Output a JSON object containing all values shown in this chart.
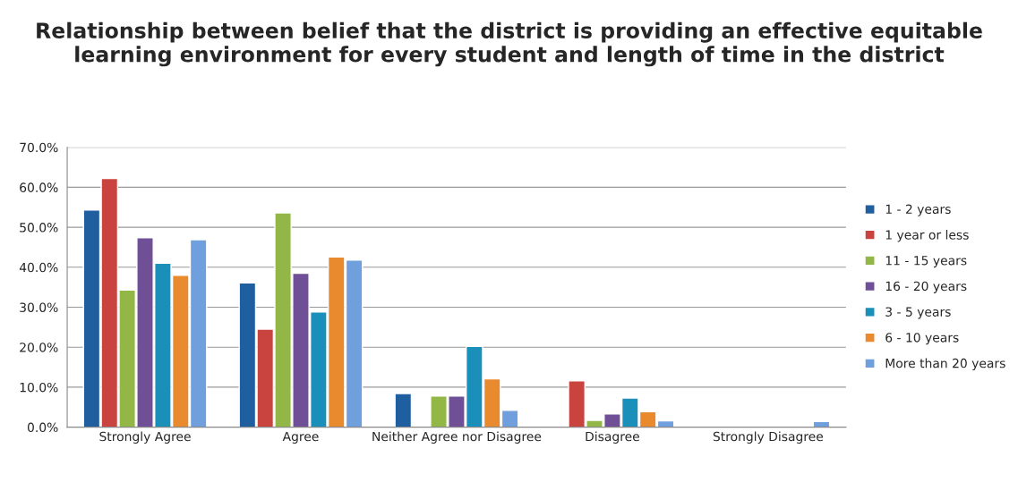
{
  "chart_data": {
    "type": "bar",
    "title": "Relationship between belief that the district is providing an effective equitable learning environment for every student and length of time in the district",
    "categories": [
      "Strongly Agree",
      "Agree",
      "Neither Agree nor Disagree",
      "Disagree",
      "Strongly Disagree"
    ],
    "series": [
      {
        "name": "1 - 2 years",
        "color": "#1f5fa0",
        "values": [
          54.3,
          36.1,
          8.4,
          null,
          null
        ]
      },
      {
        "name": "1 year or less",
        "color": "#c9433f",
        "values": [
          62.2,
          24.5,
          null,
          11.6,
          null
        ]
      },
      {
        "name": "11 - 15 years",
        "color": "#93b747",
        "values": [
          34.3,
          53.6,
          7.8,
          1.7,
          null
        ]
      },
      {
        "name": "16 - 20 years",
        "color": "#6f4f96",
        "values": [
          47.4,
          38.5,
          7.8,
          3.3,
          null
        ]
      },
      {
        "name": "3 - 5 years",
        "color": "#1a8fba",
        "values": [
          41.0,
          28.8,
          20.2,
          7.3,
          null
        ]
      },
      {
        "name": "6 - 10 years",
        "color": "#ea8a2e",
        "values": [
          38.0,
          42.6,
          12.1,
          3.9,
          null
        ]
      },
      {
        "name": "More than 20 years",
        "color": "#6f9fdc",
        "values": [
          46.9,
          41.8,
          4.2,
          1.6,
          1.4
        ]
      }
    ],
    "ylim": [
      0,
      70
    ],
    "yticks": [
      {
        "value": 0,
        "label": "0.0%"
      },
      {
        "value": 10,
        "label": "10.0%"
      },
      {
        "value": 20,
        "label": "20.0%"
      },
      {
        "value": 30,
        "label": "30.0%"
      },
      {
        "value": 40,
        "label": "40.0%"
      },
      {
        "value": 50,
        "label": "50.0%"
      },
      {
        "value": 60,
        "label": "60.0%"
      },
      {
        "value": 70,
        "label": "70.0%"
      }
    ],
    "grid": "y",
    "legend": "right"
  }
}
